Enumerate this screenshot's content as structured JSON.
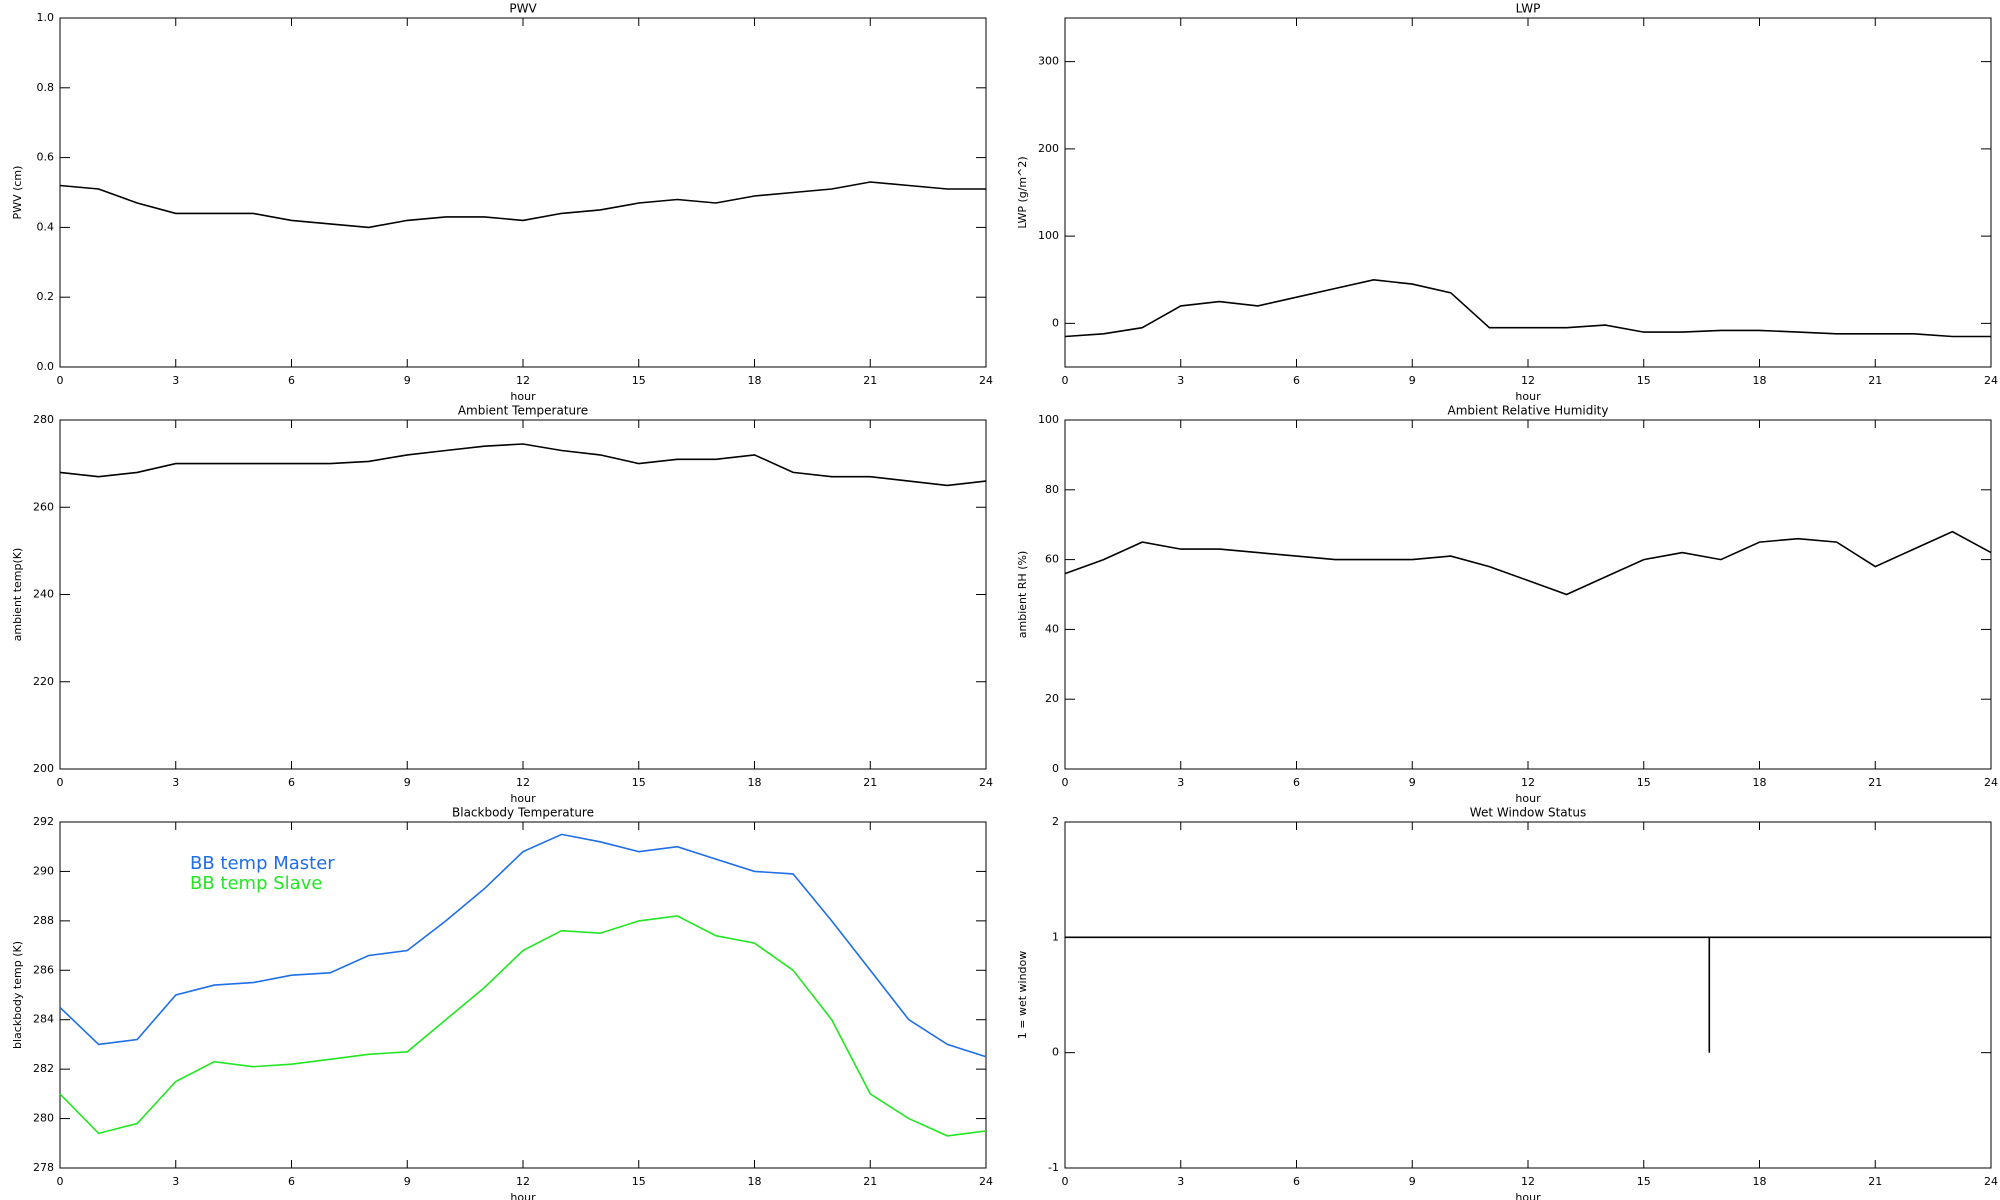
{
  "chart_data": [
    {
      "type": "line",
      "title": "PWV",
      "xlabel": "hour",
      "ylabel": "PWV (cm)",
      "x": [
        0,
        1,
        2,
        3,
        4,
        5,
        6,
        7,
        8,
        9,
        10,
        11,
        12,
        13,
        14,
        15,
        16,
        17,
        18,
        19,
        20,
        21,
        22,
        23,
        24
      ],
      "series": [
        {
          "name": "PWV",
          "color": "#000000",
          "values": [
            0.52,
            0.51,
            0.47,
            0.44,
            0.44,
            0.44,
            0.42,
            0.41,
            0.4,
            0.42,
            0.43,
            0.43,
            0.42,
            0.44,
            0.45,
            0.47,
            0.48,
            0.47,
            0.49,
            0.5,
            0.51,
            0.53,
            0.52,
            0.51,
            0.51
          ]
        }
      ],
      "xlim": [
        0,
        24
      ],
      "xticks": [
        0,
        3,
        6,
        9,
        12,
        15,
        18,
        21,
        24
      ],
      "ylim": [
        0,
        1
      ],
      "yticks": [
        {
          "value": 0,
          "label": "0.0"
        },
        0.2,
        0.4,
        0.6,
        0.8,
        {
          "value": 1,
          "label": "1.0"
        }
      ]
    },
    {
      "type": "line",
      "title": "LWP",
      "xlabel": "hour",
      "ylabel": "LWP (g/m^2)",
      "x": [
        0,
        1,
        2,
        3,
        4,
        5,
        6,
        7,
        8,
        9,
        10,
        11,
        12,
        13,
        14,
        15,
        16,
        17,
        18,
        19,
        20,
        21,
        22,
        23,
        24
      ],
      "series": [
        {
          "name": "LWP",
          "color": "#000000",
          "values": [
            -15,
            -12,
            -5,
            20,
            25,
            20,
            30,
            40,
            50,
            45,
            35,
            -5,
            -5,
            -5,
            -2,
            -10,
            -10,
            -8,
            -8,
            -10,
            -12,
            -12,
            -12,
            -15,
            -15
          ]
        }
      ],
      "xlim": [
        0,
        24
      ],
      "xticks": [
        0,
        3,
        6,
        9,
        12,
        15,
        18,
        21,
        24
      ],
      "ylim": [
        -50,
        350
      ],
      "yticks": [
        0,
        100,
        200,
        300
      ]
    },
    {
      "type": "line",
      "title": "Ambient Temperature",
      "xlabel": "hour",
      "ylabel": "ambient temp(K)",
      "x": [
        0,
        1,
        2,
        3,
        4,
        5,
        6,
        7,
        8,
        9,
        10,
        11,
        12,
        13,
        14,
        15,
        16,
        17,
        18,
        19,
        20,
        21,
        22,
        23,
        24
      ],
      "series": [
        {
          "name": "ambient temp",
          "color": "#000000",
          "values": [
            268,
            267,
            268,
            270,
            270,
            270,
            270,
            270,
            270.5,
            272,
            273,
            274,
            274.5,
            273,
            272,
            270,
            271,
            271,
            272,
            268,
            267,
            267,
            266,
            265,
            266
          ]
        }
      ],
      "xlim": [
        0,
        24
      ],
      "xticks": [
        0,
        3,
        6,
        9,
        12,
        15,
        18,
        21,
        24
      ],
      "ylim": [
        200,
        280
      ],
      "yticks": [
        200,
        220,
        240,
        260,
        280
      ]
    },
    {
      "type": "line",
      "title": "Ambient Relative Humidity",
      "xlabel": "hour",
      "ylabel": "ambient RH (%)",
      "x": [
        0,
        1,
        2,
        3,
        4,
        5,
        6,
        7,
        8,
        9,
        10,
        11,
        12,
        13,
        14,
        15,
        16,
        17,
        18,
        19,
        20,
        21,
        22,
        23,
        24
      ],
      "series": [
        {
          "name": "ambient RH",
          "color": "#000000",
          "values": [
            56,
            60,
            65,
            63,
            63,
            62,
            61,
            60,
            60,
            60,
            61,
            58,
            54,
            50,
            55,
            60,
            62,
            60,
            65,
            66,
            65,
            58,
            63,
            68,
            62
          ]
        }
      ],
      "xlim": [
        0,
        24
      ],
      "xticks": [
        0,
        3,
        6,
        9,
        12,
        15,
        18,
        21,
        24
      ],
      "ylim": [
        0,
        100
      ],
      "yticks": [
        0,
        20,
        40,
        60,
        80,
        100
      ]
    },
    {
      "type": "line",
      "title": "Blackbody Temperature",
      "xlabel": "hour",
      "ylabel": "blackbody temp (K)",
      "x": [
        0,
        1,
        2,
        3,
        4,
        5,
        6,
        7,
        8,
        9,
        10,
        11,
        12,
        13,
        14,
        15,
        16,
        17,
        18,
        19,
        20,
        21,
        22,
        23,
        24
      ],
      "series": [
        {
          "name": "BB temp Master",
          "color": "#1e6ee6",
          "values": [
            284.5,
            283,
            283.2,
            285,
            285.4,
            285.5,
            285.8,
            285.9,
            286.6,
            286.8,
            288,
            289.3,
            290.8,
            291.5,
            291.2,
            290.8,
            291,
            290.5,
            290,
            289.9,
            288,
            286,
            284,
            283,
            282.5
          ]
        },
        {
          "name": "BB temp Slave",
          "color": "#22e622",
          "values": [
            281,
            279.4,
            279.8,
            281.5,
            282.3,
            282.1,
            282.2,
            282.4,
            282.6,
            282.7,
            284,
            285.3,
            286.8,
            287.6,
            287.5,
            288,
            288.2,
            287.4,
            287.1,
            286,
            284,
            281,
            280,
            279.3,
            279.5
          ]
        }
      ],
      "legend": true,
      "xlim": [
        0,
        24
      ],
      "xticks": [
        0,
        3,
        6,
        9,
        12,
        15,
        18,
        21,
        24
      ],
      "ylim": [
        278,
        292
      ],
      "yticks": [
        278,
        280,
        282,
        284,
        286,
        288,
        290,
        292
      ]
    },
    {
      "type": "line",
      "title": "Wet Window Status",
      "xlabel": "hour",
      "ylabel": "1 = wet window",
      "x": [
        0,
        16.7,
        16.7,
        16.7,
        24
      ],
      "series": [
        {
          "name": "wet window",
          "color": "#000000",
          "values": [
            1,
            1,
            0,
            1,
            1
          ]
        }
      ],
      "xlim": [
        0,
        24
      ],
      "xticks": [
        0,
        3,
        6,
        9,
        12,
        15,
        18,
        21,
        24
      ],
      "ylim": [
        -1,
        2
      ],
      "yticks": [
        -1,
        0,
        1,
        2
      ]
    }
  ]
}
